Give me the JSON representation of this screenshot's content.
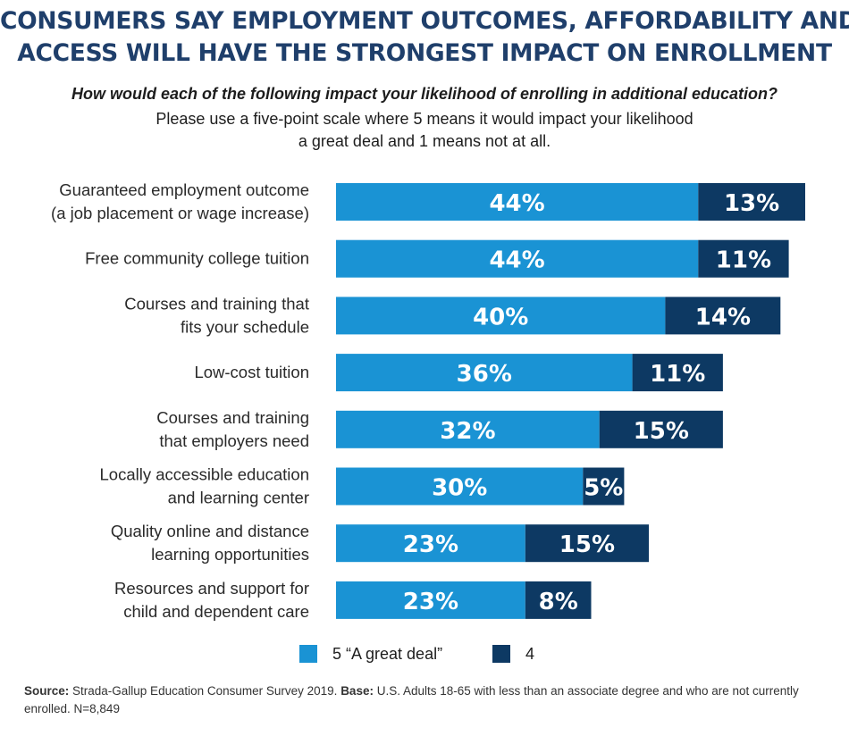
{
  "header": {
    "title_line1": "CONSUMERS SAY EMPLOYMENT OUTCOMES, AFFORDABILITY AND",
    "title_line2": "ACCESS WILL HAVE THE STRONGEST IMPACT ON ENROLLMENT",
    "question": "How would each of the following impact your likelihood of enrolling in additional education?",
    "subtitle_line1": "Please use a five-point scale where 5 means it would impact your likelihood",
    "subtitle_line2": "a great deal and 1 means not at all."
  },
  "colors": {
    "title": "#1f3f6b",
    "series_5": "#1a93d4",
    "series_4": "#0d3963"
  },
  "chart_data": {
    "type": "bar",
    "orientation": "horizontal",
    "stacked": true,
    "categories": [
      [
        "Guaranteed employment outcome",
        "(a job placement or wage increase)"
      ],
      [
        "Free community college tuition"
      ],
      [
        "Courses and training that",
        "fits your schedule"
      ],
      [
        "Low-cost tuition"
      ],
      [
        "Courses and training",
        "that employers need"
      ],
      [
        "Locally accessible education",
        "and learning center"
      ],
      [
        "Quality online and distance",
        "learning opportunities"
      ],
      [
        "Resources and support for",
        "child and dependent care"
      ]
    ],
    "series": [
      {
        "name": "5 “A great deal”",
        "values": [
          44,
          44,
          40,
          36,
          32,
          30,
          23,
          23
        ],
        "labels": [
          "44%",
          "44%",
          "40%",
          "36%",
          "32%",
          "30%",
          "23%",
          "23%"
        ]
      },
      {
        "name": "4",
        "values": [
          13,
          11,
          14,
          11,
          15,
          5,
          15,
          8
        ],
        "labels": [
          "13%",
          "11%",
          "14%",
          "11%",
          "15%",
          "5%",
          "15%",
          "8%"
        ]
      }
    ],
    "xlim": [
      0,
      57
    ],
    "grid": false,
    "legend": "bottom"
  },
  "legend": {
    "item1": "5 “A great deal”",
    "item2": "4"
  },
  "source": {
    "source_label": "Source:",
    "source_text": " Strada-Gallup Education Consumer Survey 2019.  ",
    "base_label": "Base:",
    "base_text": " U.S. Adults 18-65 with less than an associate degree and who are not currently enrolled.  N=8,849"
  }
}
